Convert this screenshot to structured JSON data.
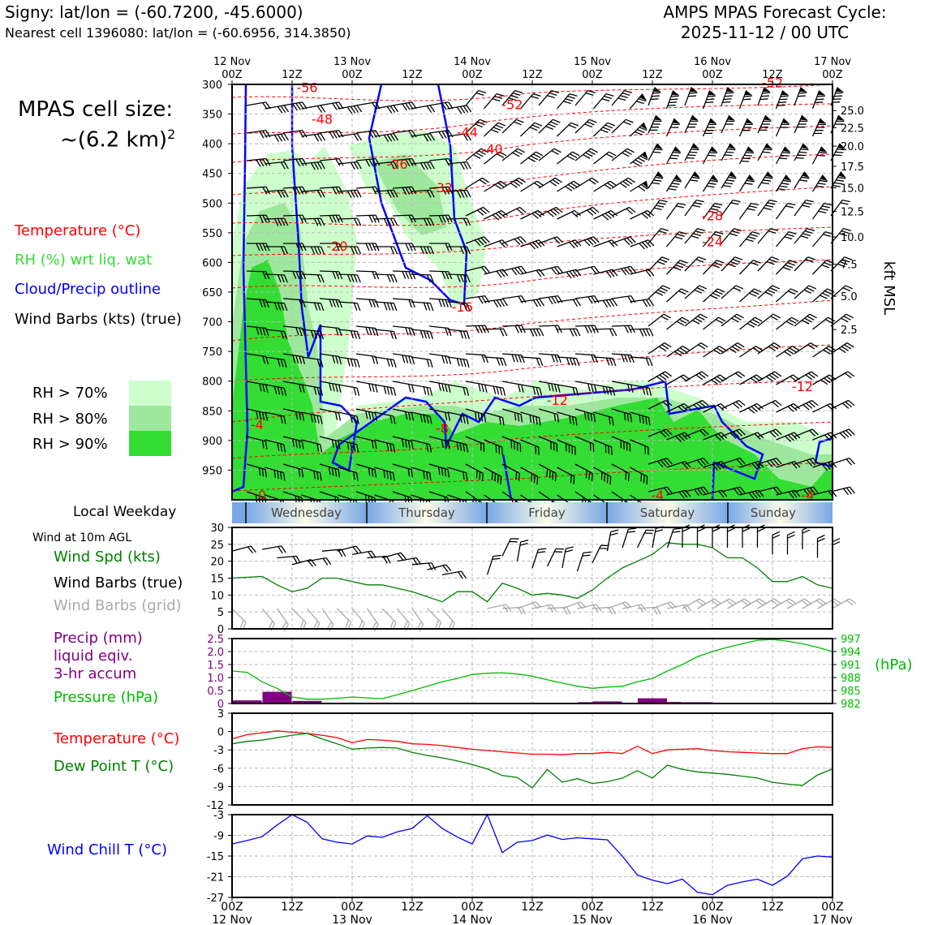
{
  "header": {
    "station": "Signy: lat/lon = (-60.7200, -45.6000)",
    "nearest": "Nearest cell 1396080: lat/lon = (-60.6956, 314.3850)",
    "cycle_line1": "AMPS MPAS Forecast Cycle:",
    "cycle_line2": "2025-11-12 / 00 UTC"
  },
  "left": {
    "cell_size_label": "MPAS cell size:",
    "cell_size_value": "~(6.2 km)",
    "cell_size_exp": "2",
    "legend_temp": "Temperature (°C)",
    "legend_rh": "RH (%) wrt liq. wat",
    "legend_cloud": "Cloud/Precip outline",
    "legend_wind": "Wind Barbs (kts) (true)",
    "rh70": "RH > 70%",
    "rh80": "RH > 80%",
    "rh90": "RH > 90%",
    "local_weekday": "Local Weekday",
    "wind10m": "Wind at 10m AGL",
    "wind_spd": "Wind Spd (kts)",
    "wind_barbs_true": "Wind Barbs (true)",
    "wind_barbs_grid": "Wind Barbs (grid)",
    "precip1": "Precip (mm)",
    "precip2": "liquid eqiv.",
    "precip3": "3-hr accum",
    "pressure": "Pressure (hPa)",
    "temperature": "Temperature (°C)",
    "dewpoint": "Dew Point T (°C)",
    "windchill": "Wind Chill T (°C)"
  },
  "colors": {
    "temp": "#ff0000",
    "rh": "#22dd22",
    "cloud": "#0000ff",
    "wind": "#000000",
    "grid_barb": "#aaaaaa",
    "precip": "#800080",
    "pressure": "#00bb00",
    "dew": "#008000",
    "chill": "#0000ff",
    "rh70": "#ccffcc",
    "rh80": "#9ee89e",
    "rh90": "#33dd33"
  },
  "chart_data": [
    {
      "type": "heatmap",
      "title": "Time-height cross section",
      "top_ticks": [
        {
          "day": "12 Nov",
          "hour": "00Z"
        },
        {
          "day": "",
          "hour": "12Z"
        },
        {
          "day": "13 Nov",
          "hour": "00Z"
        },
        {
          "day": "",
          "hour": "12Z"
        },
        {
          "day": "14 Nov",
          "hour": "00Z"
        },
        {
          "day": "",
          "hour": "12Z"
        },
        {
          "day": "15 Nov",
          "hour": "00Z"
        },
        {
          "day": "",
          "hour": "12Z"
        },
        {
          "day": "16 Nov",
          "hour": "00Z"
        },
        {
          "day": "",
          "hour": "12Z"
        },
        {
          "day": "17 Nov",
          "hour": "00Z"
        }
      ],
      "ylabel_left": "hPa",
      "pressure_levels": [
        300,
        350,
        400,
        450,
        500,
        550,
        600,
        650,
        700,
        750,
        800,
        850,
        900,
        950
      ],
      "ylim_hpa": [
        300,
        1000
      ],
      "ylabel_right": "kft MSL",
      "kft_ticks": [
        {
          "label": "25.0",
          "hpa": 344
        },
        {
          "label": "22.5",
          "hpa": 373
        },
        {
          "label": "20.0",
          "hpa": 404
        },
        {
          "label": "17.5",
          "hpa": 438
        },
        {
          "label": "15.0",
          "hpa": 474
        },
        {
          "label": "12.5",
          "hpa": 514
        },
        {
          "label": "10.0",
          "hpa": 557
        },
        {
          "label": "7.5",
          "hpa": 603
        },
        {
          "label": "5.0",
          "hpa": 657
        },
        {
          "label": "2.5",
          "hpa": 713
        }
      ],
      "temp_labels": [
        {
          "text": "-56",
          "hour": 15,
          "hpa": 313
        },
        {
          "text": "-52",
          "hour": 56,
          "hpa": 342
        },
        {
          "text": "-52",
          "hour": 108,
          "hpa": 305
        },
        {
          "text": "-48",
          "hour": 18,
          "hpa": 366
        },
        {
          "text": "-44",
          "hour": 47,
          "hpa": 388
        },
        {
          "text": "-40",
          "hour": 52,
          "hpa": 417
        },
        {
          "text": "-36",
          "hour": 33,
          "hpa": 442
        },
        {
          "text": "-32",
          "hour": 42,
          "hpa": 482
        },
        {
          "text": "-28",
          "hour": 96,
          "hpa": 529
        },
        {
          "text": "-24",
          "hour": 96,
          "hpa": 573
        },
        {
          "text": "-20",
          "hour": 21,
          "hpa": 580
        },
        {
          "text": "-16",
          "hour": 46,
          "hpa": 683
        },
        {
          "text": "-12",
          "hour": 65,
          "hpa": 840
        },
        {
          "text": "-12",
          "hour": 114,
          "hpa": 817
        },
        {
          "text": "-8",
          "hour": 42,
          "hpa": 887
        },
        {
          "text": "-4",
          "hour": 5,
          "hpa": 881
        },
        {
          "text": "-4",
          "hour": 85,
          "hpa": 1000
        },
        {
          "text": "-4",
          "hour": 115,
          "hpa": 1000
        },
        {
          "text": "0",
          "hour": 6,
          "hpa": 1000
        }
      ]
    },
    {
      "type": "line",
      "title": "Wind at 10m AGL",
      "ylim": [
        0,
        30
      ],
      "yticks": [
        0,
        5,
        10,
        15,
        20,
        25,
        30
      ],
      "x_hours": [
        0,
        6,
        9,
        12,
        15,
        18,
        21,
        24,
        27,
        30,
        33,
        36,
        39,
        42,
        45,
        48,
        51,
        54,
        57,
        60,
        63,
        66,
        69,
        72,
        75,
        78,
        81,
        84,
        87,
        90,
        93,
        96,
        99,
        102,
        105,
        108,
        111,
        114,
        117,
        120
      ],
      "wind_speed_kts": [
        15,
        15.5,
        13,
        11,
        12,
        15,
        15,
        14,
        13,
        13,
        12,
        11,
        9.5,
        8,
        11,
        11,
        8,
        13.5,
        12,
        10,
        10.5,
        10,
        9,
        11.5,
        15,
        18,
        20,
        22,
        25.5,
        25,
        25,
        24,
        21,
        21,
        18,
        14,
        14,
        15.5,
        13,
        12
      ]
    },
    {
      "type": "bar",
      "title": "Precip (mm) liquid eqiv. 3-hr accum / Pressure (hPa)",
      "ylim": [
        0,
        2.5
      ],
      "yticks": [
        "0",
        "0.5",
        "1.0",
        "1.5",
        "2.0",
        "2.5"
      ],
      "precip_hours": [
        3,
        9,
        15,
        72,
        75,
        84,
        87,
        93
      ],
      "precip_mm": [
        0.12,
        0.45,
        0.1,
        0.05,
        0.08,
        0.2,
        0.06,
        0.05
      ],
      "pressure_ylim": [
        982,
        997
      ],
      "pressure_ticks": [
        982,
        985,
        988,
        991,
        994,
        997
      ],
      "pressure_hours": [
        0,
        3,
        6,
        9,
        12,
        15,
        18,
        21,
        24,
        27,
        30,
        33,
        36,
        39,
        42,
        45,
        48,
        51,
        54,
        57,
        60,
        63,
        66,
        69,
        72,
        75,
        78,
        81,
        84,
        87,
        90,
        93,
        96,
        99,
        102,
        105,
        108,
        111,
        114,
        117,
        120
      ],
      "pressure_hpa": [
        989.5,
        989.2,
        987,
        985.5,
        983.5,
        983,
        983,
        983.2,
        983.5,
        983.3,
        983.1,
        984,
        985,
        986,
        987,
        987.8,
        988.7,
        989,
        989.1,
        988.8,
        988.3,
        987.5,
        986.7,
        986,
        985.5,
        985.8,
        986,
        987,
        987.8,
        989.5,
        991,
        992.8,
        994,
        995,
        995.8,
        996.6,
        996.8,
        996.4,
        995.8,
        995,
        994
      ]
    },
    {
      "type": "line",
      "title": "Temperature (°C) / Dew Point T (°C)",
      "ylim": [
        -12,
        3
      ],
      "yticks": [
        3,
        0,
        -3,
        -6,
        -9,
        -12
      ],
      "x_hours": [
        0,
        3,
        6,
        9,
        12,
        15,
        18,
        21,
        24,
        27,
        30,
        33,
        36,
        39,
        42,
        45,
        48,
        51,
        54,
        57,
        60,
        63,
        66,
        69,
        72,
        75,
        78,
        81,
        84,
        87,
        90,
        93,
        96,
        99,
        102,
        105,
        108,
        111,
        114,
        117,
        120
      ],
      "temperature_c": [
        -1.2,
        -0.5,
        -0.2,
        0.1,
        -0.1,
        -0.3,
        -0.6,
        -1.0,
        -1.8,
        -1.3,
        -1.4,
        -1.6,
        -2.0,
        -2.1,
        -2.3,
        -2.6,
        -2.9,
        -3.1,
        -3.3,
        -3.5,
        -3.7,
        -3.7,
        -3.8,
        -3.6,
        -3.6,
        -3.4,
        -3.6,
        -2.4,
        -3.6,
        -3.0,
        -2.9,
        -2.8,
        -3.1,
        -3.3,
        -3.4,
        -3.5,
        -3.6,
        -3.6,
        -2.8,
        -2.5,
        -2.6
      ],
      "dewpoint_c": [
        -2.0,
        -1.6,
        -1.4,
        -1.0,
        -0.6,
        -0.3,
        -1.2,
        -2.0,
        -2.9,
        -2.7,
        -2.6,
        -2.7,
        -3.4,
        -3.9,
        -4.3,
        -4.8,
        -5.4,
        -6.1,
        -7.2,
        -7.5,
        -9.2,
        -6.2,
        -8.3,
        -7.7,
        -8.5,
        -8.2,
        -7.6,
        -6.4,
        -7.6,
        -5.5,
        -6.2,
        -6.6,
        -6.8,
        -7.0,
        -7.3,
        -7.6,
        -8.3,
        -8.6,
        -8.8,
        -7.1,
        -6.1
      ]
    },
    {
      "type": "line",
      "title": "Wind Chill T (°C)",
      "ylim": [
        -27,
        -3
      ],
      "yticks": [
        -3,
        -9,
        -15,
        -21,
        -27
      ],
      "x_hours": [
        0,
        3,
        6,
        9,
        12,
        15,
        18,
        21,
        24,
        27,
        30,
        33,
        36,
        39,
        42,
        45,
        48,
        51,
        54,
        57,
        60,
        63,
        66,
        69,
        72,
        75,
        78,
        81,
        84,
        87,
        90,
        93,
        96,
        99,
        102,
        105,
        108,
        111,
        114,
        117,
        120
      ],
      "windchill_c": [
        -11.5,
        -10.5,
        -9.4,
        -6,
        -3,
        -5.2,
        -10,
        -11,
        -11.5,
        -9.2,
        -9.6,
        -8,
        -7,
        -3.3,
        -7,
        -9.5,
        -11.5,
        -3,
        -14,
        -11,
        -10.5,
        -8.9,
        -10.2,
        -9.7,
        -10,
        -10.3,
        -15,
        -20.5,
        -22,
        -23,
        -21.7,
        -25.5,
        -26.2,
        -23.5,
        -22.5,
        -21.7,
        -23.5,
        -20.8,
        -15.8,
        -15,
        -15.3
      ]
    }
  ],
  "weekday_band": {
    "days": [
      "Wednesday",
      "Thursday",
      "Friday",
      "Saturday",
      "Sunday"
    ]
  },
  "bottom_axis": [
    {
      "hour": "00Z",
      "day": "12 Nov"
    },
    {
      "hour": "12Z",
      "day": ""
    },
    {
      "hour": "00Z",
      "day": "13 Nov"
    },
    {
      "hour": "12Z",
      "day": ""
    },
    {
      "hour": "00Z",
      "day": "14 Nov"
    },
    {
      "hour": "12Z",
      "day": ""
    },
    {
      "hour": "00Z",
      "day": "15 Nov"
    },
    {
      "hour": "12Z",
      "day": ""
    },
    {
      "hour": "00Z",
      "day": "16 Nov"
    },
    {
      "hour": "12Z",
      "day": ""
    },
    {
      "hour": "00Z",
      "day": "17 Nov"
    }
  ],
  "right_units_pressure": "(hPa)"
}
